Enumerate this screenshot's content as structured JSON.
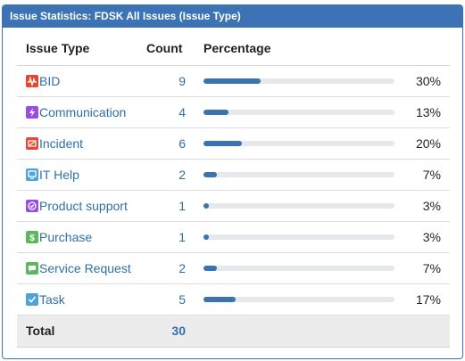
{
  "panel": {
    "title": "Issue Statistics: FDSK All Issues (Issue Type)"
  },
  "columns": {
    "type": "Issue Type",
    "count": "Count",
    "percentage": "Percentage"
  },
  "rows": [
    {
      "icon": "bid-icon",
      "color": "#e8452c",
      "label": "BID",
      "count": "9",
      "pct": "30%",
      "fraction": 0.3
    },
    {
      "icon": "communication-icon",
      "color": "#9b4de3",
      "label": "Communication",
      "count": "4",
      "pct": "13%",
      "fraction": 0.13
    },
    {
      "icon": "incident-icon",
      "color": "#e5493a",
      "label": "Incident",
      "count": "6",
      "pct": "20%",
      "fraction": 0.2
    },
    {
      "icon": "it-help-icon",
      "color": "#4fa3d9",
      "label": "IT Help",
      "count": "2",
      "pct": "7%",
      "fraction": 0.07
    },
    {
      "icon": "product-support-icon",
      "color": "#9b4de3",
      "label": "Product support",
      "count": "1",
      "pct": "3%",
      "fraction": 0.03
    },
    {
      "icon": "purchase-icon",
      "color": "#5cb85c",
      "label": "Purchase",
      "count": "1",
      "pct": "3%",
      "fraction": 0.03
    },
    {
      "icon": "service-request-icon",
      "color": "#5cb85c",
      "label": "Service Request",
      "count": "2",
      "pct": "7%",
      "fraction": 0.07
    },
    {
      "icon": "task-icon",
      "color": "#4fa3d9",
      "label": "Task",
      "count": "5",
      "pct": "17%",
      "fraction": 0.17
    }
  ],
  "total": {
    "label": "Total",
    "count": "30"
  }
}
